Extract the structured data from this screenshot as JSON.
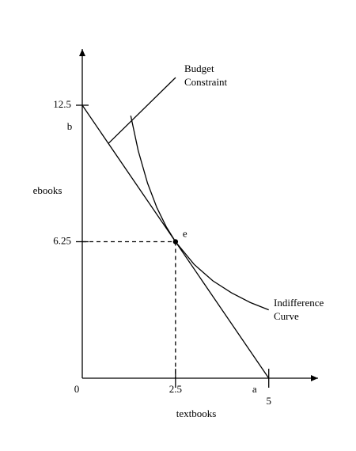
{
  "chart_data": {
    "type": "line",
    "x_label": "textbooks",
    "y_label": "ebooks",
    "xlim": [
      0,
      6.3
    ],
    "ylim": [
      0,
      15
    ],
    "xticks": [
      0,
      2.5,
      5
    ],
    "yticks": [
      6.25,
      12.5
    ],
    "series": [
      {
        "label_lines": [
          "Budget",
          "Constraint"
        ],
        "color": "#000000",
        "x": [
          0,
          5
        ],
        "values": [
          12.5,
          0
        ]
      },
      {
        "label_lines": [
          "Indifference",
          "Curve"
        ],
        "color": "#000000",
        "x": [
          1.3,
          1.5,
          1.75,
          2,
          2.25,
          2.5,
          3,
          3.5,
          4,
          4.5,
          5
        ],
        "values": [
          12.02,
          10.42,
          8.93,
          7.81,
          6.94,
          6.25,
          5.21,
          4.46,
          3.91,
          3.47,
          3.13
        ]
      }
    ],
    "point": {
      "label": "e",
      "x": 2.5,
      "y": 6.25
    },
    "annotations": [
      "b",
      "a"
    ]
  }
}
